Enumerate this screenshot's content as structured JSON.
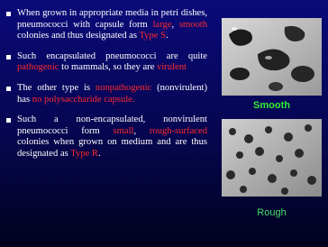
{
  "bullets": [
    {
      "segments": [
        {
          "text": "When grown in appropriate media in petri dishes, pneumococci with capsule form ",
          "red": false
        },
        {
          "text": "large",
          "red": true
        },
        {
          "text": ", ",
          "red": false
        },
        {
          "text": "smooth",
          "red": true
        },
        {
          "text": " colonies and thus designated as ",
          "red": false
        },
        {
          "text": "Type S",
          "red": true
        },
        {
          "text": ".",
          "red": false
        }
      ]
    },
    {
      "segments": [
        {
          "text": "Such encapsulated pneumococci are quite ",
          "red": false
        },
        {
          "text": "pathogenic",
          "red": true
        },
        {
          "text": " to mammals, so they are ",
          "red": false
        },
        {
          "text": "virulent",
          "red": true
        }
      ]
    },
    {
      "segments": [
        {
          "text": "The other type is ",
          "red": false
        },
        {
          "text": "nonpathogenic",
          "red": true
        },
        {
          "text": " (nonvirulent) has ",
          "red": false
        },
        {
          "text": "no polysaccharide capsule.",
          "red": true
        }
      ]
    },
    {
      "segments": [
        {
          "text": "Such a non-encapsulated, nonvirulent pneumococci form ",
          "red": false
        },
        {
          "text": "small",
          "red": true
        },
        {
          "text": ", ",
          "red": false
        },
        {
          "text": "rough-surfaced",
          "red": true
        },
        {
          "text": " colonies when grown on medium and are thus designated as ",
          "red": false
        },
        {
          "text": "Type R",
          "red": true
        },
        {
          "text": ".",
          "red": false
        }
      ]
    }
  ],
  "images": [
    {
      "caption": "Smooth"
    },
    {
      "caption": "Rough"
    }
  ]
}
